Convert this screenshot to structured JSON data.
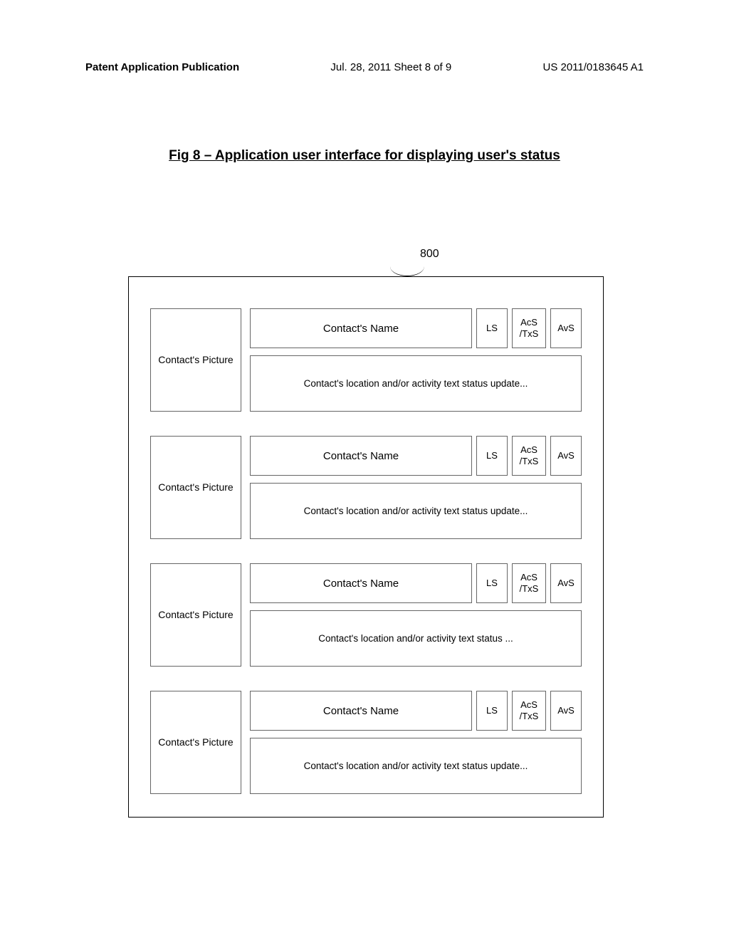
{
  "header": {
    "left": "Patent Application Publication",
    "center": "Jul. 28, 2011  Sheet 8 of 9",
    "right": "US 2011/0183645 A1"
  },
  "figure_title": "Fig 8 – Application user interface for displaying user's status",
  "callout_number": "800",
  "rows": [
    {
      "picture": "Contact's Picture",
      "name": "Contact's Name",
      "ls": "LS",
      "acs": "AcS /TxS",
      "avs": "AvS",
      "status": "Contact's location and/or activity text status update..."
    },
    {
      "picture": "Contact's Picture",
      "name": "Contact's Name",
      "ls": "LS",
      "acs": "AcS /TxS",
      "avs": "AvS",
      "status": "Contact's location and/or activity text status update..."
    },
    {
      "picture": "Contact's Picture",
      "name": "Contact's Name",
      "ls": "LS",
      "acs": "AcS /TxS",
      "avs": "AvS",
      "status": "Contact's location and/or activity text status ..."
    },
    {
      "picture": "Contact's Picture",
      "name": "Contact's Name",
      "ls": "LS",
      "acs": "AcS /TxS",
      "avs": "AvS",
      "status": "Contact's location and/or activity text status update..."
    }
  ],
  "colors": {
    "border": "#666666",
    "text": "#000000",
    "bg": "#ffffff"
  }
}
